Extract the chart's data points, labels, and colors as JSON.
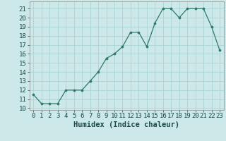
{
  "x": [
    0,
    1,
    2,
    3,
    4,
    5,
    6,
    7,
    8,
    9,
    10,
    11,
    12,
    13,
    14,
    15,
    16,
    17,
    18,
    19,
    20,
    21,
    22,
    23
  ],
  "y": [
    11.5,
    10.5,
    10.5,
    10.5,
    12.0,
    12.0,
    12.0,
    13.0,
    14.0,
    15.5,
    16.0,
    16.8,
    18.4,
    18.4,
    16.8,
    19.4,
    21.0,
    21.0,
    20.0,
    21.0,
    21.0,
    21.0,
    19.0,
    16.4
  ],
  "xlabel": "Humidex (Indice chaleur)",
  "ylim": [
    9.8,
    21.8
  ],
  "xlim": [
    -0.5,
    23.5
  ],
  "yticks": [
    10,
    11,
    12,
    13,
    14,
    15,
    16,
    17,
    18,
    19,
    20,
    21
  ],
  "xticks": [
    0,
    1,
    2,
    3,
    4,
    5,
    6,
    7,
    8,
    9,
    10,
    11,
    12,
    13,
    14,
    15,
    16,
    17,
    18,
    19,
    20,
    21,
    22,
    23
  ],
  "line_color": "#2d7a6a",
  "marker_color": "#2d7a6a",
  "bg_color": "#cce8e8",
  "grid_color": "#aad4d4",
  "xlabel_fontsize": 7.5,
  "tick_fontsize": 6.5
}
